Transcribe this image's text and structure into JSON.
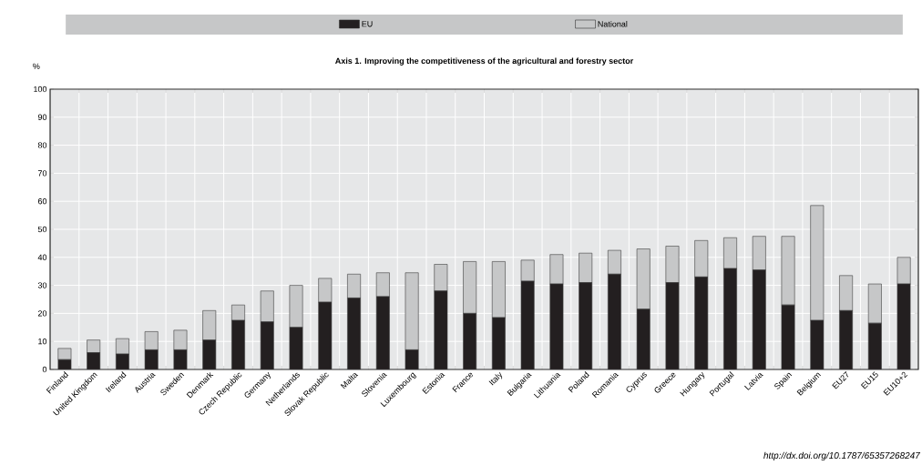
{
  "chart_data": {
    "type": "bar",
    "title": "Axis 1. Improving the competitiveness of the agricultural and forestry sector",
    "ylabel": "%",
    "categories": [
      "Finland",
      "United Kingdom",
      "Ireland",
      "Austria",
      "Sweden",
      "Denmark",
      "Czech Republic",
      "Germany",
      "Netherlands",
      "Slovak Republic",
      "Malta",
      "Slovenia",
      "Luxembourg",
      "Estonia",
      "France",
      "Italy",
      "Bulgaria",
      "Lithuania",
      "Poland",
      "Romania",
      "Cyprus",
      "Greece",
      "Hungary",
      "Portugal",
      "Latvia",
      "Spain",
      "Belgium",
      "EU27",
      "EU15",
      "EU10+2"
    ],
    "series": [
      {
        "name": "EU",
        "color": "#231f20",
        "values": [
          3.5,
          6,
          5.5,
          7,
          7,
          10.5,
          17.5,
          17,
          15,
          24,
          25.5,
          26,
          7,
          28,
          20,
          18.5,
          31.5,
          30.5,
          31,
          34,
          21.5,
          31,
          33,
          36,
          35.5,
          23,
          17.5,
          21,
          16.5,
          30.5
        ]
      },
      {
        "name": "National",
        "color": "#c6c7c8",
        "values": [
          4,
          4.5,
          5.5,
          6.5,
          7,
          10.5,
          5.5,
          11,
          15,
          8.5,
          8.5,
          8.5,
          27.5,
          9.5,
          18.5,
          20,
          7.5,
          10.5,
          10.5,
          8.5,
          21.5,
          13,
          13,
          11,
          12,
          24.5,
          41,
          12.5,
          14,
          9.5
        ]
      }
    ],
    "stacked": true,
    "ylim": [
      0,
      100
    ],
    "yticks": [
      0,
      10,
      20,
      30,
      40,
      50,
      60,
      70,
      80,
      90,
      100
    ],
    "grid": true,
    "legend": "top",
    "annotations": [
      "http://dx.doi.org/10.1787/65357268247"
    ]
  }
}
